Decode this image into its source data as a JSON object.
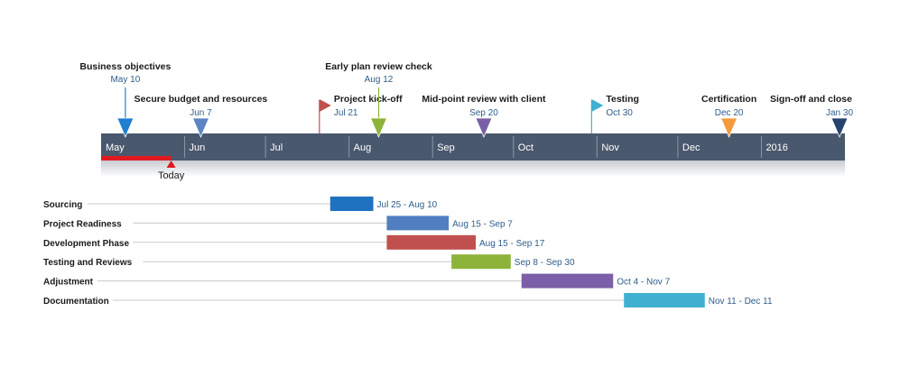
{
  "chart_data": {
    "type": "gantt",
    "timeline": {
      "months": [
        "May",
        "Jun",
        "Jul",
        "Aug",
        "Sep",
        "Oct",
        "Nov",
        "Dec",
        "2016"
      ],
      "today": {
        "label": "Today",
        "date": "2015-05-27"
      },
      "bar_color": "#4a586e"
    },
    "milestones": [
      {
        "title": "Business objectives",
        "date_label": "May 10",
        "date": "2015-05-10",
        "shape": "triangle",
        "color": "#1f7fd0",
        "row": 0
      },
      {
        "title": "Secure budget and resources",
        "date_label": "Jun 7",
        "date": "2015-06-07",
        "shape": "triangle",
        "color": "#5b84c4",
        "row": 2
      },
      {
        "title": "Project kick-off",
        "date_label": "Jul 21",
        "date": "2015-07-21",
        "shape": "flag",
        "color": "#c0504d",
        "row": 2
      },
      {
        "title": "Early plan review check",
        "date_label": "Aug 12",
        "date": "2015-08-12",
        "shape": "triangle",
        "color": "#8db33a",
        "row": 0
      },
      {
        "title": "Mid-point review with client",
        "date_label": "Sep 20",
        "date": "2015-09-20",
        "shape": "triangle",
        "color": "#7b5fa8",
        "row": 2
      },
      {
        "title": "Testing",
        "date_label": "Oct 30",
        "date": "2015-10-30",
        "shape": "flag",
        "color": "#3fb0d0",
        "row": 2
      },
      {
        "title": "Certification",
        "date_label": "Dec 20",
        "date": "2015-12-20",
        "shape": "triangle",
        "color": "#f39a3a",
        "row": 2
      },
      {
        "title": "Sign-off and close",
        "date_label": "Jan 30",
        "date": "2016-01-30",
        "shape": "triangle",
        "color": "#24446e",
        "row": 2
      }
    ],
    "tasks": [
      {
        "name": "Sourcing",
        "start": "2015-07-25",
        "end": "2015-08-10",
        "range_label": "Jul 25 - Aug 10",
        "color": "#1f72c0"
      },
      {
        "name": "Project Readiness",
        "start": "2015-08-15",
        "end": "2015-09-07",
        "range_label": "Aug 15 - Sep 7",
        "color": "#4f7fc0"
      },
      {
        "name": "Development Phase",
        "start": "2015-08-15",
        "end": "2015-09-17",
        "range_label": "Aug 15 - Sep 17",
        "color": "#c0504d"
      },
      {
        "name": "Testing and Reviews",
        "start": "2015-09-08",
        "end": "2015-09-30",
        "range_label": "Sep 8 - Sep 30",
        "color": "#8db33a"
      },
      {
        "name": "Adjustment",
        "start": "2015-10-04",
        "end": "2015-11-07",
        "range_label": "Oct 4 - Nov 7",
        "color": "#7b5fa8"
      },
      {
        "name": "Documentation",
        "start": "2015-11-11",
        "end": "2015-12-11",
        "range_label": "Nov 11 - Dec 11",
        "color": "#3fb0d0"
      }
    ]
  }
}
